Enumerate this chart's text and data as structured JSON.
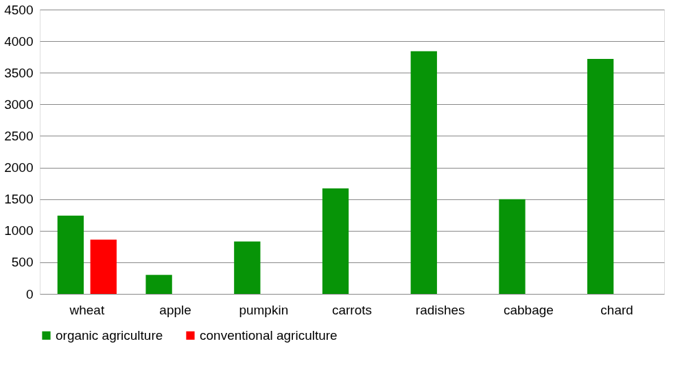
{
  "chart_data": {
    "type": "bar",
    "categories": [
      "wheat",
      "apple",
      "pumpkin",
      "carrots",
      "radishes",
      "cabbage",
      "chard"
    ],
    "series": [
      {
        "name": "organic agriculture",
        "color": "#079407",
        "values": [
          1240,
          300,
          830,
          1670,
          3840,
          1500,
          3720
        ]
      },
      {
        "name": "conventional agriculture",
        "color": "#ff0000",
        "values": [
          860,
          null,
          null,
          null,
          null,
          null,
          null
        ]
      }
    ],
    "ylim": [
      0,
      4500
    ],
    "yticks": [
      0,
      500,
      1000,
      1500,
      2000,
      2500,
      3000,
      3500,
      4000,
      4500
    ],
    "grid": "y",
    "legend": "bottom"
  }
}
